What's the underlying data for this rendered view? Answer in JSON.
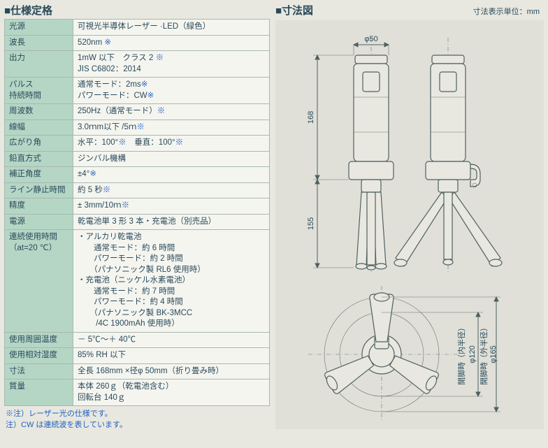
{
  "left": {
    "title": "■仕様定格",
    "rows": [
      {
        "label": "光源",
        "value": "可視光半導体レーザー ·LED（緑色）"
      },
      {
        "label": "波長",
        "value": "520nm ",
        "mark": "※"
      },
      {
        "label": "出力",
        "value": "1mW 以下　クラス 2 ",
        "mark": "※",
        "value2": "JIS C6802：2014"
      },
      {
        "label": "パルス\n持続時間",
        "value": "通常モード：2ms",
        "mark": "※",
        "value2": "パワーモード：CW",
        "mark2": "※"
      },
      {
        "label": "周波数",
        "value": "250Hz（通常モード）",
        "mark": "※"
      },
      {
        "label": "線幅",
        "value": "3.0ｍm以下 /5ｍ",
        "mark": "※"
      },
      {
        "label": "広がり角",
        "value": "水平：100°",
        "mark": "※",
        "value2_inline": "　垂直：100°",
        "mark2": "※"
      },
      {
        "label": "鉛直方式",
        "value": "ジンバル機構"
      },
      {
        "label": "補正角度",
        "value": "±4°",
        "mark": "※"
      },
      {
        "label": "ライン静止時間",
        "value": "約 5 秒",
        "mark": "※"
      },
      {
        "label": "精度",
        "value": "± 3mm/10ｍ",
        "mark": "※"
      },
      {
        "label": "電源",
        "value": "乾電池単 3 形 3 本・充電池（別売品）"
      },
      {
        "label": "連続使用時間\n（at=20 ℃）",
        "value_multiline": [
          "・アルカリ乾電池",
          "　　通常モード：約 6 時間",
          "　　パワーモード：約 2 時間",
          "　　（パナソニック製 RL6 使用時）",
          "・充電池（ニッケル水素電池）",
          "　　通常モード：約 7 時間",
          "　　パワーモード：約 4 時間",
          "　　（パナソニック製 BK-3MCC",
          "　　 /4C 1900mAh 使用時）"
        ]
      },
      {
        "label": "使用周囲温度",
        "value": "－ 5℃～＋ 40℃"
      },
      {
        "label": "使用相対湿度",
        "value": "85% RH 以下"
      },
      {
        "label": "寸法",
        "value": "全長 168mm ×径φ 50mm（折り畳み時）"
      },
      {
        "label": "質量",
        "value": "本体 260ｇ（乾電池含む）",
        "value2": "回転台 140ｇ"
      }
    ],
    "footnotes": [
      "※注）レーザー光の仕様です。",
      "注）CW は連続波を表しています。"
    ]
  },
  "right": {
    "title": "■寸法図",
    "unit_note": "寸法表示単位：mm",
    "dims": {
      "top_dia": "φ50",
      "h_upper": "168",
      "h_lower": "155",
      "inner": "開脚時（内半径）",
      "inner_dia": "φ120",
      "outer": "開脚時（外半径）",
      "outer_dia": "φ165"
    }
  },
  "colors": {
    "label_bg": "#b5d6c5",
    "border": "#a8b8b0",
    "page_bg": "#e8e8e0",
    "text": "#2a4a5a",
    "note": "#2060c0"
  }
}
